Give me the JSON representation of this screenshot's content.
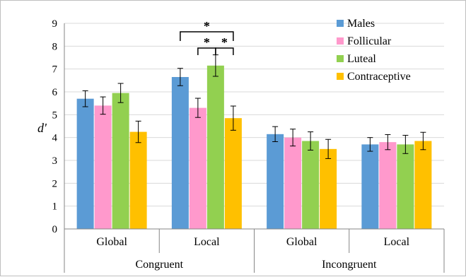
{
  "chart_data": {
    "type": "bar",
    "ylabel": "d'",
    "ylim": [
      0,
      9
    ],
    "yticks": [
      "0",
      "1",
      "2",
      "3",
      "4",
      "5",
      "6",
      "7",
      "8",
      "9"
    ],
    "grid": "horizontal",
    "legend_position": "top-right",
    "categories": [
      "Global",
      "Local",
      "Global",
      "Local"
    ],
    "groups": [
      "Congruent",
      "Incongruent"
    ],
    "series": [
      {
        "name": "Males",
        "color": "#5b9bd5",
        "values": [
          5.7,
          6.65,
          4.15,
          3.7
        ],
        "errors": [
          0.35,
          0.38,
          0.33,
          0.3
        ]
      },
      {
        "name": "Follicular",
        "color": "#ff99cc",
        "values": [
          5.4,
          5.3,
          4.0,
          3.8
        ],
        "errors": [
          0.38,
          0.42,
          0.37,
          0.33
        ]
      },
      {
        "name": "Luteal",
        "color": "#92d050",
        "values": [
          5.95,
          7.15,
          3.85,
          3.7
        ],
        "errors": [
          0.42,
          0.47,
          0.4,
          0.4
        ]
      },
      {
        "name": "Contraceptive",
        "color": "#ffc000",
        "values": [
          4.25,
          4.85,
          3.5,
          3.85
        ],
        "errors": [
          0.47,
          0.53,
          0.42,
          0.38
        ]
      }
    ],
    "significance": [
      {
        "text": "*",
        "from_series": 0,
        "to_series": 3,
        "category": 1
      },
      {
        "text": "*",
        "from_series": 1,
        "to_series": 2,
        "category": 1
      },
      {
        "text": "*",
        "from_series": 2,
        "to_series": 3,
        "category": 1
      }
    ]
  }
}
